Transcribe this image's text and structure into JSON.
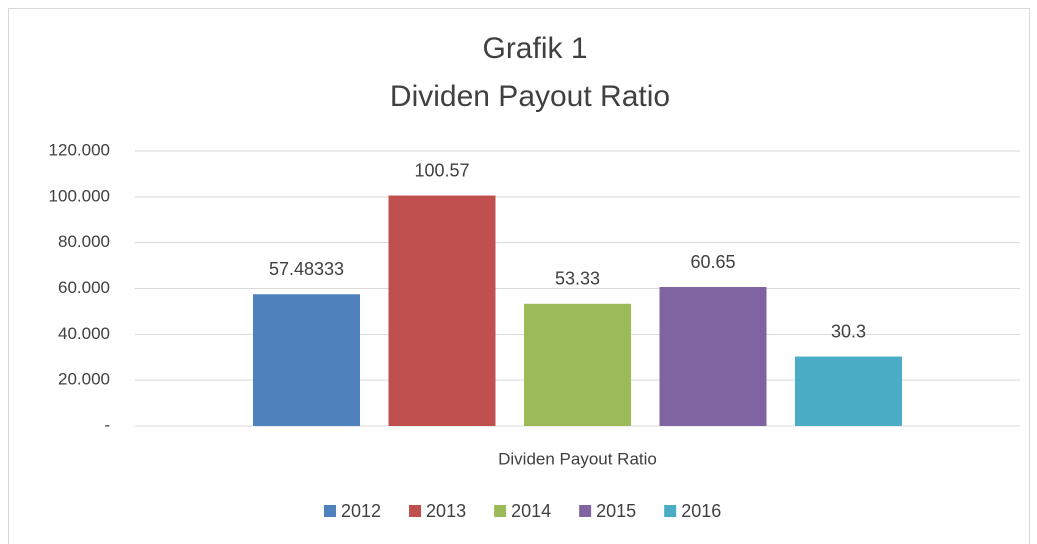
{
  "chart_data": {
    "type": "bar",
    "title": "Grafik 1",
    "subtitle": "Dividen Payout Ratio",
    "categories": [
      "Dividen Payout Ratio"
    ],
    "series": [
      {
        "name": "2012",
        "color": "#4f81bd",
        "values": [
          57.48333
        ]
      },
      {
        "name": "2013",
        "color": "#c0504d",
        "values": [
          100.57
        ]
      },
      {
        "name": "2014",
        "color": "#9bbb59",
        "values": [
          53.33
        ]
      },
      {
        "name": "2015",
        "color": "#8064a2",
        "values": [
          60.65
        ]
      },
      {
        "name": "2016",
        "color": "#4bacc6",
        "values": [
          30.3
        ]
      }
    ],
    "ylim": [
      0,
      120
    ],
    "yticks": [
      {
        "value": 0,
        "label": "-"
      },
      {
        "value": 20,
        "label": "20.000"
      },
      {
        "value": 40,
        "label": "40.000"
      },
      {
        "value": 60,
        "label": "60.000"
      },
      {
        "value": 80,
        "label": "80.000"
      },
      {
        "value": 100,
        "label": "100.000"
      },
      {
        "value": 120,
        "label": "120.000"
      }
    ],
    "grid": true,
    "legend": "bottom"
  }
}
